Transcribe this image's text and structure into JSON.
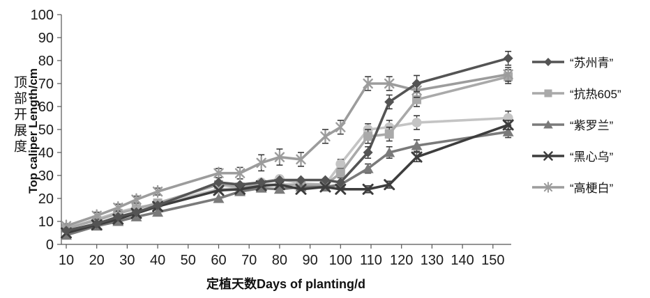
{
  "figure": {
    "y_axis_label_zh": "顶部开展度",
    "y_axis_label_en": "Top caliper Length/cm",
    "x_axis_label": "定植天数Days of planting/d"
  },
  "chart_data": {
    "type": "line",
    "title": "",
    "xlabel": "定植天数Days of planting/d",
    "ylabel": "顶部开展度 Top caliper Length/cm",
    "xlim": [
      8,
      156
    ],
    "ylim": [
      0,
      100
    ],
    "x_ticks": [
      10,
      20,
      30,
      40,
      50,
      60,
      70,
      80,
      90,
      100,
      110,
      120,
      130,
      140,
      150
    ],
    "y_ticks": [
      0,
      10,
      20,
      30,
      40,
      50,
      60,
      70,
      80,
      90,
      100
    ],
    "grid": false,
    "error_bars": true,
    "legend_position": "right",
    "palette_note": "grayscale",
    "x": [
      10,
      20,
      27,
      33,
      40,
      60,
      67,
      74,
      80,
      87,
      95,
      100,
      109,
      116,
      125,
      155
    ],
    "series": [
      {
        "name": "“苏州青”",
        "marker": "diamond",
        "color": "#545454",
        "in_legend": true,
        "values": [
          6,
          9,
          12,
          14,
          17,
          27,
          26,
          27,
          28,
          28,
          28,
          27,
          40,
          62,
          70,
          81
        ],
        "errors": [
          0,
          0,
          0,
          0,
          0,
          0,
          0,
          0,
          0,
          0,
          0,
          0,
          2.5,
          3,
          3.5,
          3
        ]
      },
      {
        "name": "“抗热605”",
        "marker": "square",
        "color": "#a9a9a9",
        "in_legend": true,
        "values": [
          7,
          10.5,
          13.5,
          15.5,
          18,
          26,
          25,
          26,
          26,
          26,
          26,
          31,
          47,
          48,
          63,
          73
        ],
        "errors": [
          1,
          1,
          1,
          1,
          1,
          0,
          0,
          0,
          0,
          0,
          0,
          2,
          3,
          3,
          3,
          3
        ]
      },
      {
        "name": "“紫罗兰”",
        "marker": "triangle",
        "color": "#7a7a7a",
        "in_legend": true,
        "values": [
          4,
          8,
          10,
          12,
          14,
          20,
          23,
          24.5,
          24,
          25,
          25,
          26,
          33,
          40,
          43,
          49
        ],
        "errors": [
          0,
          0,
          1,
          1,
          1,
          0,
          0,
          0,
          0,
          0,
          0,
          0,
          2,
          2.5,
          2.5,
          2.5
        ]
      },
      {
        "name": "“黑心乌”",
        "marker": "x",
        "color": "#3d3d3d",
        "in_legend": true,
        "values": [
          5,
          8.5,
          11,
          13.5,
          16.5,
          23.5,
          24,
          25.5,
          26,
          24,
          25,
          24,
          24,
          26,
          38,
          52
        ],
        "errors": [
          0,
          0,
          0,
          0,
          0,
          0,
          0,
          0,
          0,
          0,
          0,
          0,
          1.5,
          1.5,
          2,
          2
        ]
      },
      {
        "name": "“高梗白”",
        "marker": "star",
        "color": "#9c9c9c",
        "in_legend": true,
        "values": [
          8,
          12.5,
          16,
          19.5,
          23,
          31,
          31,
          35.5,
          38,
          37,
          47,
          51,
          70,
          70,
          67,
          74
        ],
        "errors": [
          1,
          1.5,
          1.5,
          1.5,
          1.5,
          2,
          2.5,
          3.5,
          3.5,
          3,
          3,
          3,
          3,
          3,
          3,
          3
        ]
      },
      {
        "name": "",
        "marker": "circle",
        "color": "#c4c4c4",
        "in_legend": false,
        "values": [
          7,
          11,
          14,
          16,
          17.5,
          24,
          24.5,
          27,
          28.5,
          26.5,
          26,
          35,
          50,
          51,
          53,
          55
        ],
        "errors": [
          1,
          1,
          1,
          1,
          1,
          0,
          0,
          0,
          0,
          0,
          0,
          2,
          2.5,
          3,
          3,
          3
        ]
      }
    ]
  }
}
